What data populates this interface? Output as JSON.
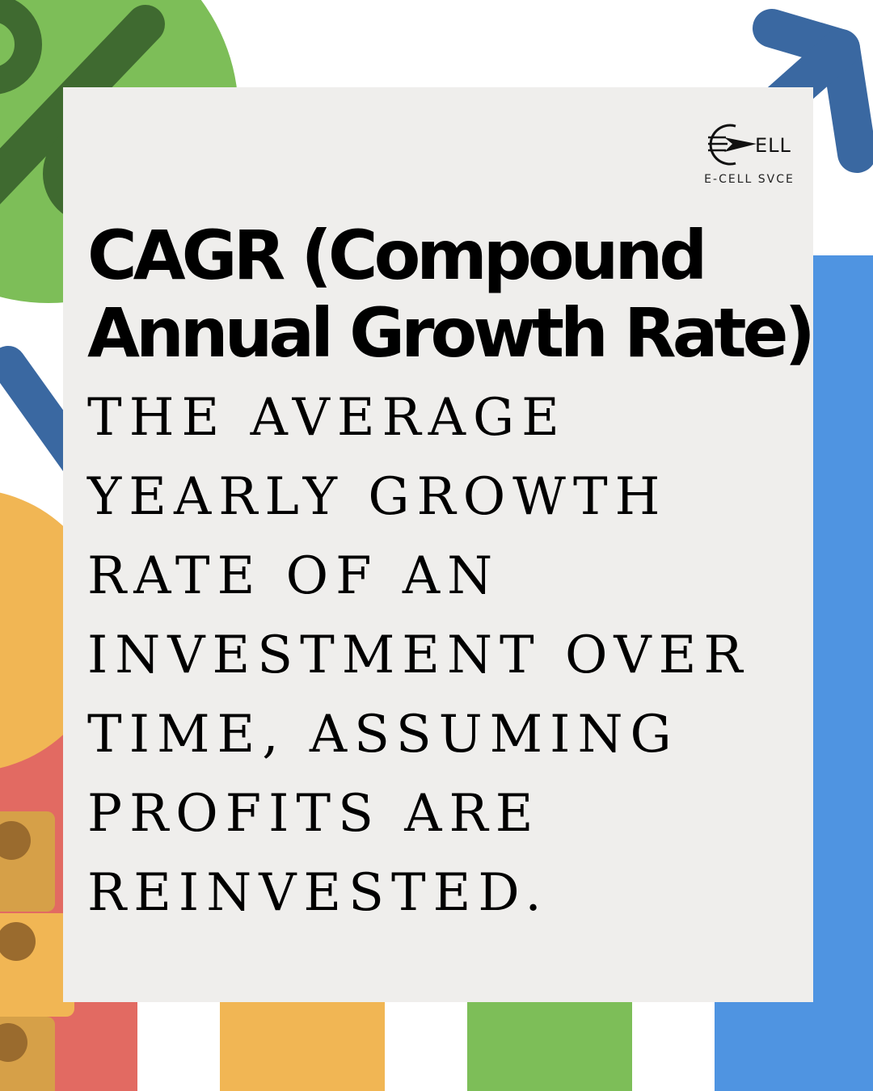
{
  "title": {
    "line1": "CAGR (Compound",
    "line2": "Annual Growth Rate)"
  },
  "definition": {
    "lines": [
      "THE AVERAGE",
      "YEARLY GROWTH",
      "RATE OF AN",
      "INVESTMENT OVER",
      "TIME, ASSUMING",
      "PROFITS ARE",
      "REINVESTED."
    ]
  },
  "logo": {
    "text": "ELL",
    "caption": "E-CELL SVCE"
  },
  "colors": {
    "background": "#ffffff",
    "card": "#efeeec",
    "green": "#7dbe58",
    "dark_green": "#3f6a30",
    "blue_arrow": "#3a68a1",
    "blue_bar": "#4f94e1",
    "red_bar": "#e26a62",
    "orange": "#f1b654",
    "coin_shade": "#d6a048",
    "text": "#000000"
  }
}
